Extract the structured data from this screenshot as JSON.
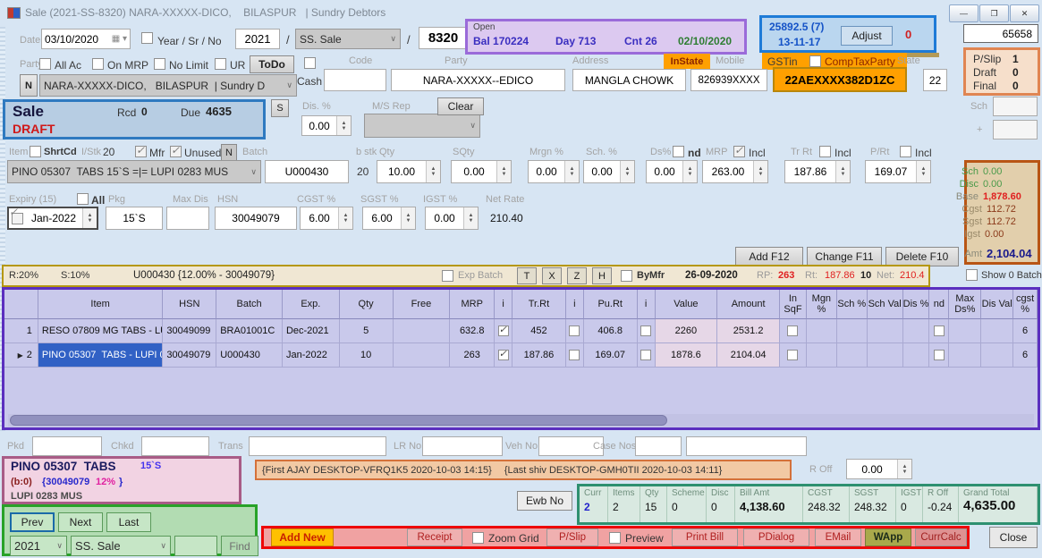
{
  "colors": {
    "accent_orange": "#FFA000",
    "draft_red": "#D01818",
    "value_red": "#E02020",
    "open_purple": "#9A6BD9",
    "adjust_blue": "#1E7BD7",
    "grid_purple": "#5B2FBF",
    "strip_gold": "#B5980F",
    "nav_green": "#28A228",
    "totals_green": "#2E9070",
    "bar_red": "#EE0808",
    "selected_blue": "#3161C5"
  },
  "title_bar": {
    "title": "Sale (2021-SS-8320) NARA-XXXXX-DICO,    BILASPUR   | Sundry Debtors"
  },
  "window_controls": {
    "minimize": "—",
    "maximize": "❐",
    "close": "✕"
  },
  "header": {
    "date_label": "Date",
    "date_value": "03/10/2020",
    "calendar_icon": "▦ ▾",
    "year_sr_no_label": "Year / Sr / No",
    "year_value": "2021",
    "separator": "/",
    "series_value": "SS. Sale",
    "bill_no": "8320",
    "ref_no": "65658",
    "open_panel": {
      "title": "Open",
      "bal_label": "Bal",
      "bal_value": "170224",
      "day_label": "Day",
      "day_value": "713",
      "cnt_label": "Cnt",
      "cnt_value": "26",
      "open_date": "02/10/2020"
    },
    "adjust_panel": {
      "amount": "25892.5 (7)",
      "date": "13-11-17",
      "adjust_button": "Adjust",
      "pending": "0"
    }
  },
  "party_section": {
    "party_label": "Party",
    "all_ac_label": "All Ac",
    "on_mrp_label": "On MRP",
    "no_limit_label": "No Limit",
    "ur_label": "UR",
    "todo_button": "ToDo",
    "n_button": "N",
    "party_dropdown": "NARA-XXXXX-DICO,   BILASPUR  | Sundry D",
    "cash_label": "Cash",
    "code_label": "Code",
    "party_field_label": "Party",
    "party_code_value": "NARA-XXXXX--EDICO",
    "address_label": "Address",
    "instate_badge": "InState",
    "address_value": "MANGLA CHOWK",
    "mobile_label": "Mobile",
    "mobile_value": "826939XXXX",
    "gstin_label": "GSTin",
    "comp_tax_label": "CompTaxParty",
    "gstin_value": "22AEXXXX382D1ZC",
    "state_label": "State",
    "state_value": "22"
  },
  "pslip_panel": {
    "pslip_label": "P/Slip",
    "pslip_value": "1",
    "draft_label": "Draft",
    "draft_value": "0",
    "final_label": "Final",
    "final_value": "0",
    "sch_label": "Sch",
    "plus_label": "+"
  },
  "sale_panel": {
    "title": "Sale",
    "rcd_label": "Rcd",
    "rcd_value": "0",
    "due_label": "Due",
    "due_value": "4635",
    "status": "DRAFT",
    "s_button": "S",
    "dis_pct_label": "Dis. %",
    "dis_pct_value": "0.00",
    "ms_rep_label": "M/S Rep",
    "clear_button": "Clear"
  },
  "item_entry": {
    "item_label": "Item",
    "shrtcd_label": "ShrtCd",
    "istk_label": "I/Stk",
    "istk_value": "20",
    "mfr_label": "Mfr",
    "unused_label": "Unused",
    "n_button": "N",
    "item_value": "PINO 05307  TABS 15`S =|= LUPI 0283 MUS",
    "batch_label": "Batch",
    "batch_value": "U000430",
    "bstk_label": "b stk",
    "bstk_value": "20",
    "qty_label": "Qty",
    "qty_value": "10.00",
    "sqty_label": "SQty",
    "sqty_value": "0.00",
    "mrgn_label": "Mrgn %",
    "mrgn_value": "0.00",
    "sch_label": "Sch. %",
    "sch_value": "0.00",
    "ds_label": "Ds%",
    "nd_label": "nd",
    "ds_value": "0.00",
    "mrp_label": "MRP",
    "incl_label": "Incl",
    "mrp_value": "263.00",
    "trrt_label": "Tr Rt",
    "trrt_value": "187.86",
    "prt_label": "P/Rt",
    "prt_value": "169.07",
    "expiry_label": "Expiry (15)",
    "all_label": "All",
    "expiry_value": "Jan-2022",
    "pkg_label": "Pkg",
    "pkg_value": "15`S",
    "maxdis_label": "Max Dis",
    "hsn_label": "HSN",
    "hsn_value": "30049079",
    "cgst_label": "CGST %",
    "cgst_value": "6.00",
    "sgst_label": "SGST %",
    "sgst_value": "6.00",
    "igst_label": "IGST %",
    "igst_value": "0.00",
    "netrate_label": "Net Rate",
    "netrate_value": "210.40"
  },
  "gst_panel": {
    "sch_label": "Sch",
    "sch": "0.00",
    "disc_label": "Disc",
    "disc": "0.00",
    "base_label": "Base",
    "base": "1,878.60",
    "cgst_label": "Cgst",
    "cgst": "112.72",
    "sgst_label": "Sgst",
    "sgst": "112.72",
    "igst_label": "Igst",
    "igst": "0.00",
    "amt_label": "Amt",
    "amt": "2,104.04"
  },
  "actions": {
    "add_button": "Add F12",
    "change_button": "Change F11",
    "delete_button": "Delete F10",
    "show_batch_label": "Show 0 Batch"
  },
  "batch_strip": {
    "retail_margin": "R:20%",
    "sale_margin": "S:10%",
    "batch_info": "U000430 {12.00% - 30049079}",
    "exp_batch_label": "Exp Batch",
    "t_button": "T",
    "x_button": "X",
    "z_button": "Z",
    "h_button": "H",
    "bymfr_label": "ByMfr",
    "date": "26-09-2020",
    "rp_label": "RP:",
    "rp_value": "263",
    "rt_label": "Rt:",
    "rt_value": "187.86",
    "rt_extra": "10",
    "net_label": "Net:",
    "net_value": "210.4"
  },
  "grid": {
    "columns": [
      "",
      "Item",
      "HSN",
      "Batch",
      "Exp.",
      "Qty",
      "Free",
      "MRP",
      "i",
      "Tr.Rt",
      "i",
      "Pu.Rt",
      "i",
      "Value",
      "Amount",
      "In SqF",
      "Mgn %",
      "Sch %",
      "Sch Val",
      "Dis %",
      "nd",
      "Max Ds%",
      "Dis Val",
      "cgst %"
    ],
    "rows": [
      [
        "1",
        "RESO 07809 MG TABS - LUPI 040...",
        "30049099",
        "BRA01001C",
        "Dec-2021",
        "5",
        "",
        "632.8",
        true,
        "452",
        false,
        "406.8",
        false,
        "2260",
        "2531.2",
        false,
        "",
        "",
        "",
        "",
        false,
        "",
        "",
        "6"
      ],
      [
        "2",
        "PINO 05307  TABS - LUPI 0283 M...",
        "30049079",
        "U000430",
        "Jan-2022",
        "10",
        "",
        "263",
        true,
        "187.86",
        false,
        "169.07",
        false,
        "1878.6",
        "2104.04",
        false,
        "",
        "",
        "",
        "",
        false,
        "",
        "",
        "6"
      ]
    ],
    "selected_row": 1
  },
  "transport": {
    "pkd_label": "Pkd",
    "chkd_label": "Chkd",
    "trans_label": "Trans",
    "lrno_label": "LR No",
    "vehno_label": "Veh No",
    "casenos_label": "Case Nos"
  },
  "item_info": {
    "name": "PINO 05307  TABS",
    "pack": "15`S",
    "b_zero": "(b:0)",
    "hsn_part": "{30049079",
    "pct_part": "12%",
    "brace": "}",
    "mfr_line": "LUPI 0283 MUS"
  },
  "audit": {
    "first": "{First AJAY DESKTOP-VFRQ1K5 2020-10-03 14:15}",
    "last": "{Last shiv DESKTOP-GMH0TII 2020-10-03 14:11}"
  },
  "roff": {
    "label": "R Off",
    "value": "0.00"
  },
  "ewb_button": "Ewb No",
  "bill_totals": {
    "cells": [
      {
        "label": "Curr",
        "value": "2",
        "style": "blue"
      },
      {
        "label": "Items",
        "value": "2",
        "style": ""
      },
      {
        "label": "Qty",
        "value": "15",
        "style": ""
      },
      {
        "label": "Scheme",
        "value": "0",
        "style": ""
      },
      {
        "label": "Disc",
        "value": "0",
        "style": ""
      },
      {
        "label": "Bill Amt",
        "value": "4,138.60",
        "style": "bold"
      },
      {
        "label": "CGST",
        "value": "248.32",
        "style": ""
      },
      {
        "label": "SGST",
        "value": "248.32",
        "style": ""
      },
      {
        "label": "IGST",
        "value": "0",
        "style": ""
      },
      {
        "label": "R Off",
        "value": "-0.24",
        "style": ""
      },
      {
        "label": "Grand Total",
        "value": "4,635.00",
        "style": "grand"
      }
    ]
  },
  "nav": {
    "prev_button": "Prev",
    "next_button": "Next",
    "last_button": "Last",
    "year_value": "2021",
    "series_value": "SS. Sale",
    "find_button": "Find"
  },
  "bottom_bar": {
    "add_new": "Add New",
    "receipt": "Receipt",
    "zoom_grid_label": "Zoom Grid",
    "pslip": "P/Slip",
    "preview_label": "Preview",
    "print_bill": "Print Bill",
    "pdialog": "PDialog",
    "email": "EMail",
    "wapp": "WApp",
    "currcalc": "CurrCalc"
  },
  "close_button": "Close"
}
